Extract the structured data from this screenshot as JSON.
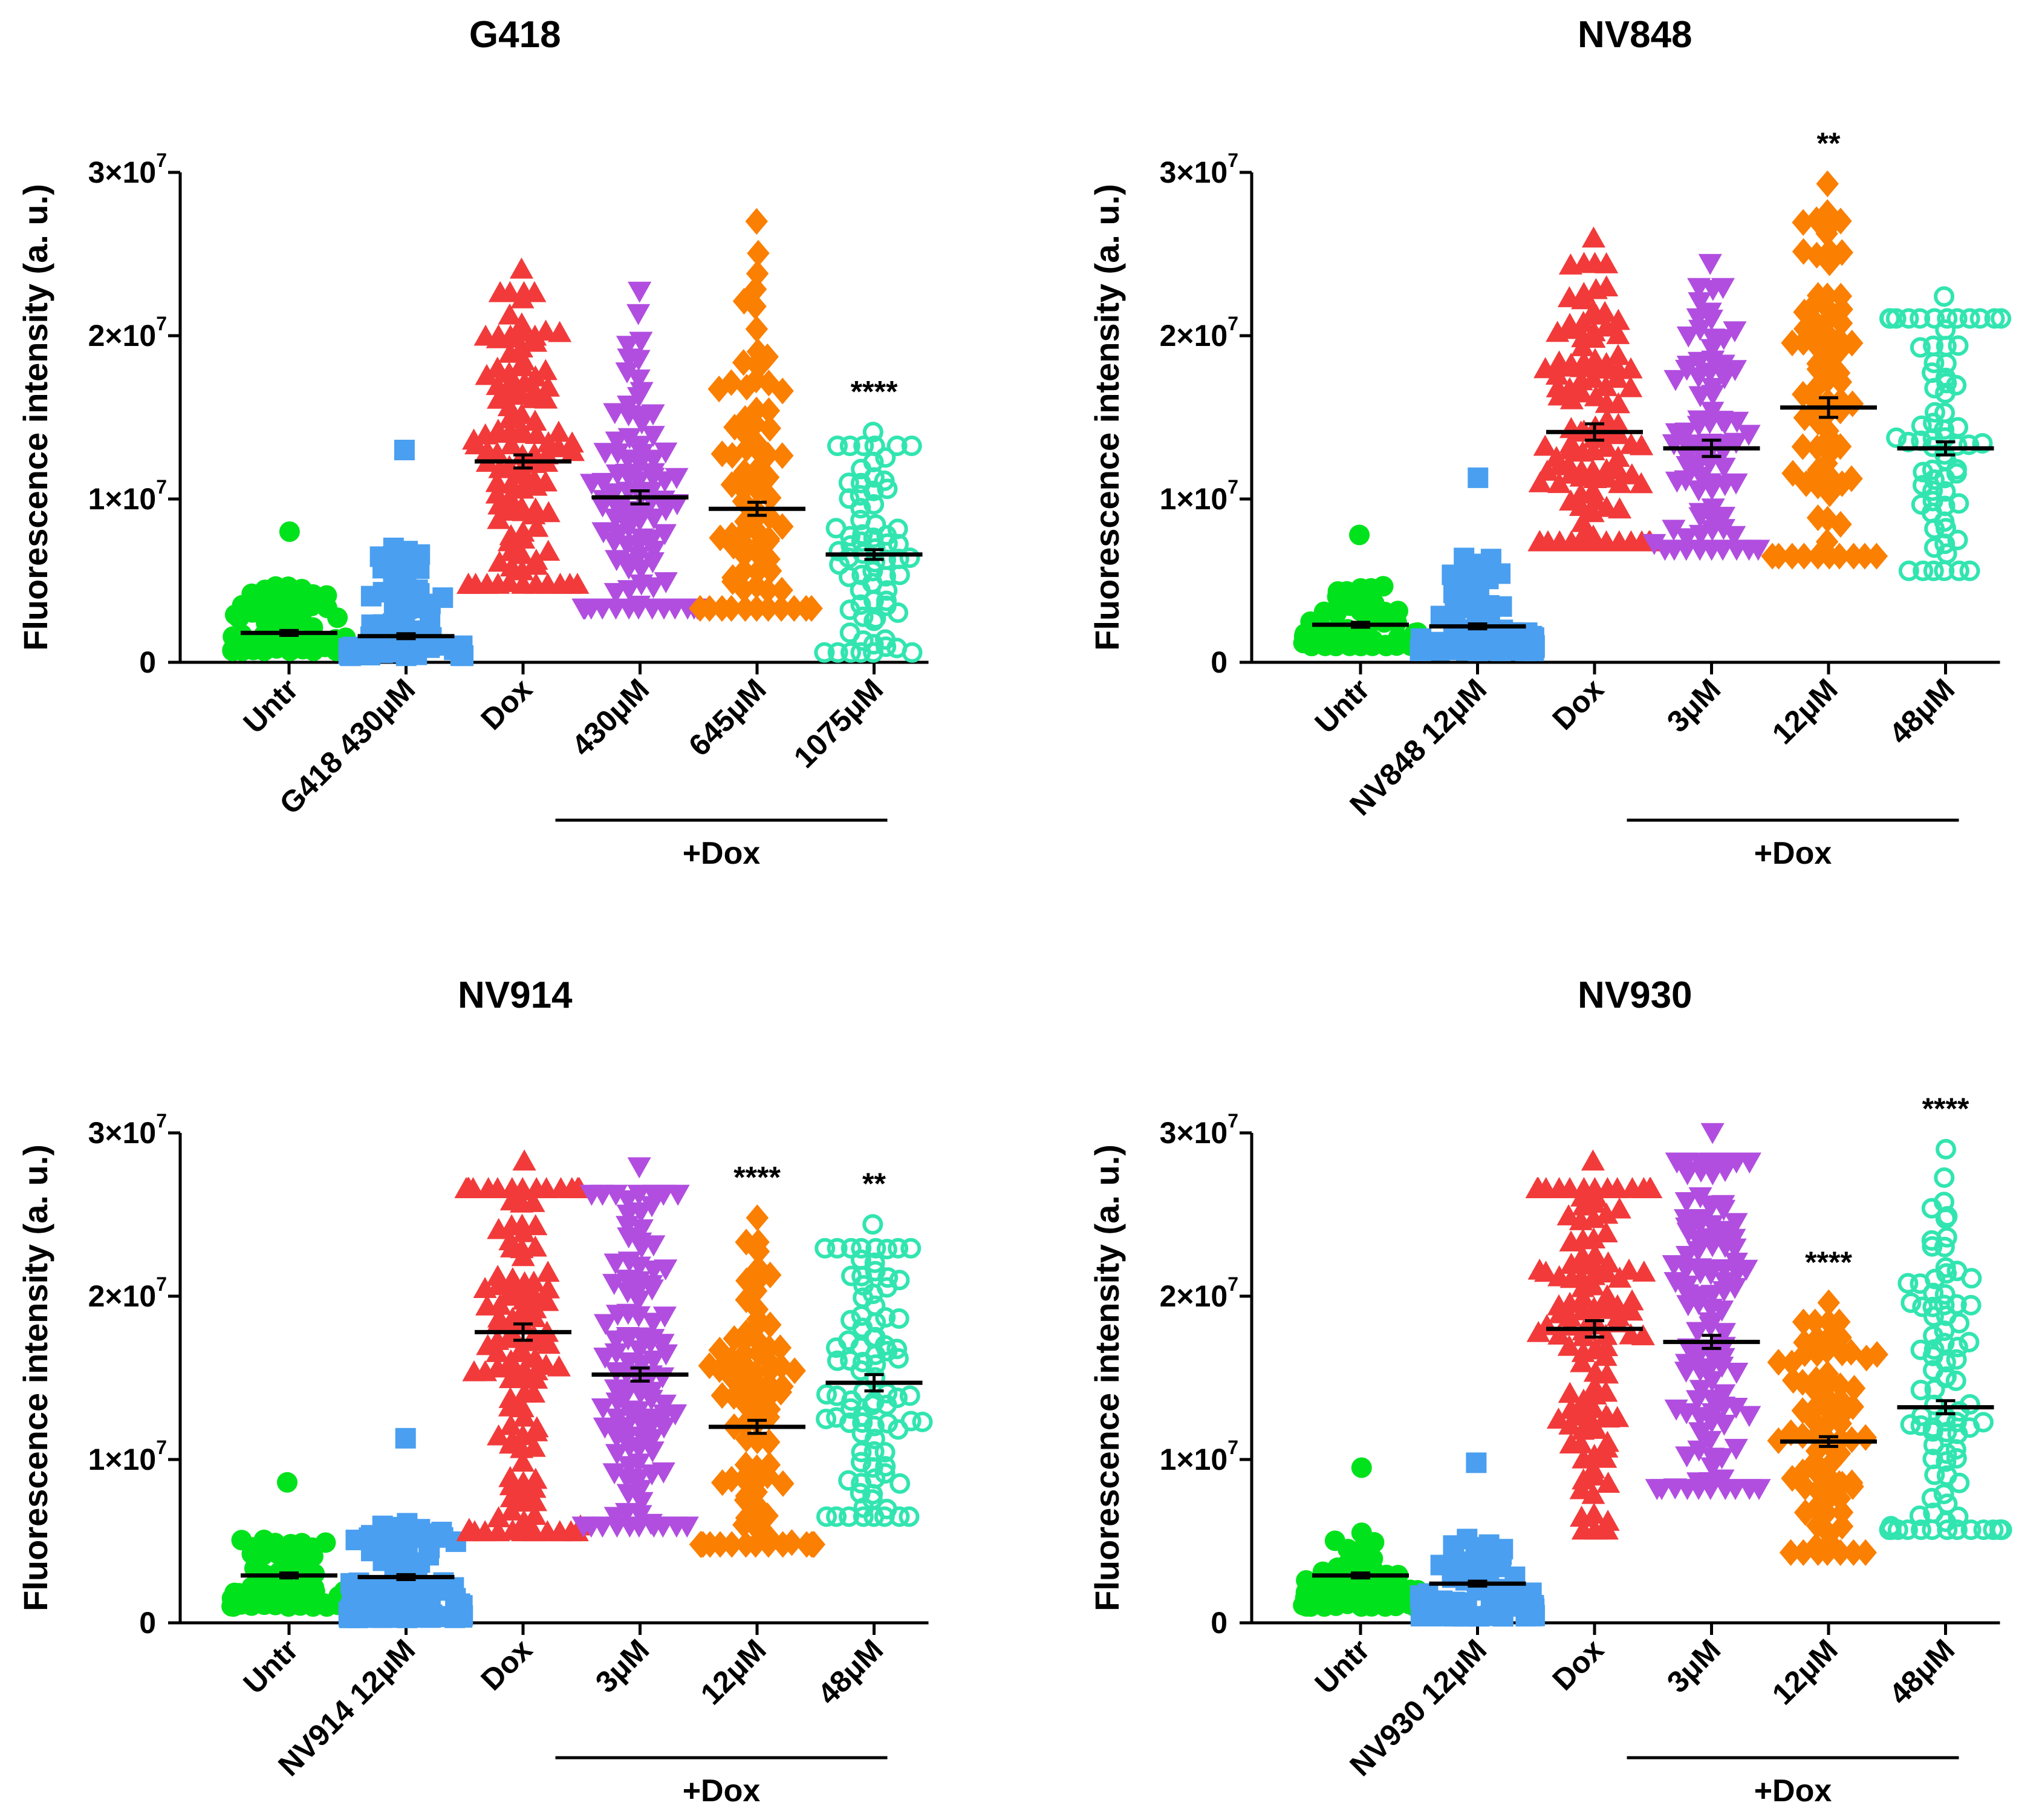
{
  "colors": {
    "untr": "#00e21c",
    "drug_alone": "#4a9ff0",
    "dox": "#f23a3a",
    "low": "#b14ee0",
    "mid": "#fb7f00",
    "high": "#32e5b0"
  },
  "series_styles": [
    {
      "color_key": "untr",
      "marker": "circle-filled"
    },
    {
      "color_key": "drug_alone",
      "marker": "square-filled"
    },
    {
      "color_key": "dox",
      "marker": "triangle-up-filled"
    },
    {
      "color_key": "low",
      "marker": "triangle-down-filled"
    },
    {
      "color_key": "mid",
      "marker": "diamond-filled"
    },
    {
      "color_key": "high",
      "marker": "circle-open"
    }
  ],
  "chart_data": [
    {
      "type": "scatter",
      "title": "G418",
      "ylabel": "Fluorescence intensity (a. u.)",
      "ylim": [
        0,
        30000000
      ],
      "yticks": [
        {
          "mantissa": "0",
          "exp": ""
        },
        {
          "mantissa": "1×10",
          "exp": "7"
        },
        {
          "mantissa": "2×10",
          "exp": "7"
        },
        {
          "mantissa": "3×10",
          "exp": "7"
        }
      ],
      "categories": [
        "Untr",
        "G418 430μM",
        "Dox",
        "430μM",
        "645μM",
        "1075μM"
      ],
      "group_label": "+Dox",
      "groups": [
        {
          "mean": 1800000,
          "sem": 150000,
          "min": 700000,
          "max": 8000000,
          "n": 60,
          "sig": ""
        },
        {
          "mean": 1600000,
          "sem": 150000,
          "min": 400000,
          "max": 13000000,
          "n": 60,
          "sig": ""
        },
        {
          "mean": 12300000,
          "sem": 400000,
          "min": 4700000,
          "max": 24000000,
          "n": 110,
          "sig": ""
        },
        {
          "mean": 10100000,
          "sem": 400000,
          "min": 3400000,
          "max": 22800000,
          "n": 90,
          "sig": ""
        },
        {
          "mean": 9400000,
          "sem": 400000,
          "min": 3300000,
          "max": 27000000,
          "n": 80,
          "sig": ""
        },
        {
          "mean": 6600000,
          "sem": 300000,
          "min": 600000,
          "max": 14100000,
          "n": 70,
          "sig": "****"
        }
      ]
    },
    {
      "type": "scatter",
      "title": "NV848",
      "ylabel": "Fluorescence intensity (a. u.)",
      "ylim": [
        0,
        30000000
      ],
      "yticks": [
        {
          "mantissa": "0",
          "exp": ""
        },
        {
          "mantissa": "1×10",
          "exp": "7"
        },
        {
          "mantissa": "2×10",
          "exp": "7"
        },
        {
          "mantissa": "3×10",
          "exp": "7"
        }
      ],
      "categories": [
        "Untr",
        "NV848 12μM",
        "Dox",
        "3μM",
        "12μM",
        "48μM"
      ],
      "group_label": "+Dox",
      "groups": [
        {
          "mean": 2300000,
          "sem": 150000,
          "min": 1000000,
          "max": 7800000,
          "n": 60,
          "sig": ""
        },
        {
          "mean": 2200000,
          "sem": 150000,
          "min": 700000,
          "max": 11300000,
          "n": 70,
          "sig": ""
        },
        {
          "mean": 14100000,
          "sem": 500000,
          "min": 7300000,
          "max": 25900000,
          "n": 110,
          "sig": ""
        },
        {
          "mean": 13100000,
          "sem": 500000,
          "min": 7000000,
          "max": 24500000,
          "n": 80,
          "sig": ""
        },
        {
          "mean": 15600000,
          "sem": 600000,
          "min": 6500000,
          "max": 29300000,
          "n": 80,
          "sig": "**"
        },
        {
          "mean": 13100000,
          "sem": 400000,
          "min": 5600000,
          "max": 22400000,
          "n": 70,
          "sig": ""
        }
      ]
    },
    {
      "type": "scatter",
      "title": "NV914",
      "ylabel": "Fluorescence intensity (a. u.)",
      "ylim": [
        0,
        30000000
      ],
      "yticks": [
        {
          "mantissa": "0",
          "exp": ""
        },
        {
          "mantissa": "1×10",
          "exp": "7"
        },
        {
          "mantissa": "2×10",
          "exp": "7"
        },
        {
          "mantissa": "3×10",
          "exp": "7"
        }
      ],
      "categories": [
        "Untr",
        "NV914 12μM",
        "Dox",
        "3μM",
        "12μM",
        "48μM"
      ],
      "group_label": "+Dox",
      "groups": [
        {
          "mean": 2900000,
          "sem": 150000,
          "min": 1000000,
          "max": 8600000,
          "n": 60,
          "sig": ""
        },
        {
          "mean": 2800000,
          "sem": 150000,
          "min": 300000,
          "max": 11300000,
          "n": 80,
          "sig": ""
        },
        {
          "mean": 17800000,
          "sem": 500000,
          "min": 5500000,
          "max": 28200000,
          "n": 120,
          "sig": ""
        },
        {
          "mean": 15200000,
          "sem": 400000,
          "min": 6000000,
          "max": 28000000,
          "n": 110,
          "sig": ""
        },
        {
          "mean": 12000000,
          "sem": 400000,
          "min": 4800000,
          "max": 24800000,
          "n": 90,
          "sig": "****"
        },
        {
          "mean": 14700000,
          "sem": 500000,
          "min": 6500000,
          "max": 24400000,
          "n": 90,
          "sig": "**"
        }
      ]
    },
    {
      "type": "scatter",
      "title": "NV930",
      "ylabel": "Fluorescence intensity (a. u.)",
      "ylim": [
        0,
        30000000
      ],
      "yticks": [
        {
          "mantissa": "0",
          "exp": ""
        },
        {
          "mantissa": "1×10",
          "exp": "7"
        },
        {
          "mantissa": "2×10",
          "exp": "7"
        },
        {
          "mantissa": "3×10",
          "exp": "7"
        }
      ],
      "categories": [
        "Untr",
        "NV930 12μM",
        "Dox",
        "3μM",
        "12μM",
        "48μM"
      ],
      "group_label": "+Dox",
      "groups": [
        {
          "mean": 2900000,
          "sem": 150000,
          "min": 1000000,
          "max": 9500000,
          "n": 60,
          "sig": ""
        },
        {
          "mean": 2400000,
          "sem": 150000,
          "min": 400000,
          "max": 9800000,
          "n": 70,
          "sig": ""
        },
        {
          "mean": 18000000,
          "sem": 500000,
          "min": 5600000,
          "max": 28200000,
          "n": 120,
          "sig": ""
        },
        {
          "mean": 17200000,
          "sem": 400000,
          "min": 8300000,
          "max": 30100000,
          "n": 110,
          "sig": ""
        },
        {
          "mean": 11100000,
          "sem": 300000,
          "min": 4300000,
          "max": 19600000,
          "n": 80,
          "sig": "****"
        },
        {
          "mean": 13200000,
          "sem": 400000,
          "min": 5700000,
          "max": 29000000,
          "n": 90,
          "sig": "****"
        }
      ]
    }
  ]
}
